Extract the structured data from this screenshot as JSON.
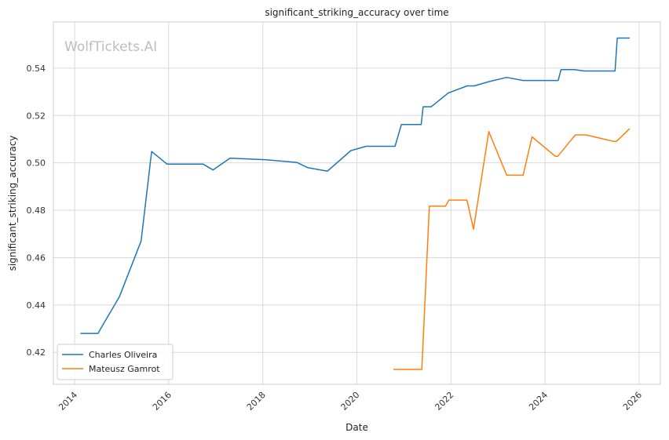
{
  "watermark": "WolfTickets.AI",
  "chart_data": {
    "type": "line",
    "title": "significant_striking_accuracy over time",
    "xlabel": "Date",
    "ylabel": "significant_striking_accuracy",
    "x_is_date": true,
    "xlim": [
      "2013-07-20",
      "2026-06-15"
    ],
    "ylim": [
      0.4065,
      0.5595
    ],
    "x_ticks": [
      "2014",
      "2016",
      "2018",
      "2020",
      "2022",
      "2024",
      "2026"
    ],
    "y_ticks": [
      "0.42",
      "0.44",
      "0.46",
      "0.48",
      "0.50",
      "0.52",
      "0.54"
    ],
    "grid": true,
    "legend_position": "lower-left",
    "series": [
      {
        "name": "Charles Oliveira",
        "color": "#1f77b4",
        "points": [
          [
            "2014-02-15",
            0.428
          ],
          [
            "2014-07-01",
            0.428
          ],
          [
            "2014-12-15",
            0.4435
          ],
          [
            "2015-06-01",
            0.467
          ],
          [
            "2015-08-22",
            0.5048
          ],
          [
            "2015-12-19",
            0.4995
          ],
          [
            "2016-09-24",
            0.4995
          ],
          [
            "2016-12-10",
            0.497
          ],
          [
            "2017-04-22",
            0.502
          ],
          [
            "2018-02-01",
            0.5013
          ],
          [
            "2018-09-22",
            0.5002
          ],
          [
            "2018-12-15",
            0.498
          ],
          [
            "2019-05-18",
            0.4965
          ],
          [
            "2019-11-16",
            0.5052
          ],
          [
            "2020-03-14",
            0.507
          ],
          [
            "2020-10-24",
            0.507
          ],
          [
            "2020-12-12",
            0.5162
          ],
          [
            "2021-05-15",
            0.5162
          ],
          [
            "2021-05-30",
            0.5237
          ],
          [
            "2021-08-01",
            0.5237
          ],
          [
            "2021-12-11",
            0.5295
          ],
          [
            "2022-05-07",
            0.5325
          ],
          [
            "2022-07-01",
            0.5325
          ],
          [
            "2022-10-22",
            0.5343
          ],
          [
            "2023-03-10",
            0.5361
          ],
          [
            "2023-07-15",
            0.5348
          ],
          [
            "2024-04-13",
            0.5348
          ],
          [
            "2024-05-05",
            0.5394
          ],
          [
            "2024-08-15",
            0.5394
          ],
          [
            "2024-11-01",
            0.5388
          ],
          [
            "2025-06-28",
            0.5388
          ],
          [
            "2025-07-15",
            0.5527
          ],
          [
            "2025-10-20",
            0.5527
          ]
        ]
      },
      {
        "name": "Mateusz Gamrot",
        "color": "#ff7f0e",
        "points": [
          [
            "2020-10-11",
            0.4128
          ],
          [
            "2021-05-20",
            0.4128
          ],
          [
            "2021-07-17",
            0.4817
          ],
          [
            "2021-11-20",
            0.4817
          ],
          [
            "2021-12-15",
            0.4843
          ],
          [
            "2022-05-05",
            0.4843
          ],
          [
            "2022-06-25",
            0.472
          ],
          [
            "2022-10-22",
            0.5132
          ],
          [
            "2023-03-10",
            0.4948
          ],
          [
            "2023-07-15",
            0.4948
          ],
          [
            "2023-09-23",
            0.511
          ],
          [
            "2024-03-20",
            0.5028
          ],
          [
            "2024-04-10",
            0.5028
          ],
          [
            "2024-08-24",
            0.5118
          ],
          [
            "2024-11-15",
            0.5118
          ],
          [
            "2025-06-15",
            0.5091
          ],
          [
            "2025-07-10",
            0.5091
          ],
          [
            "2025-10-20",
            0.5145
          ]
        ]
      }
    ]
  }
}
